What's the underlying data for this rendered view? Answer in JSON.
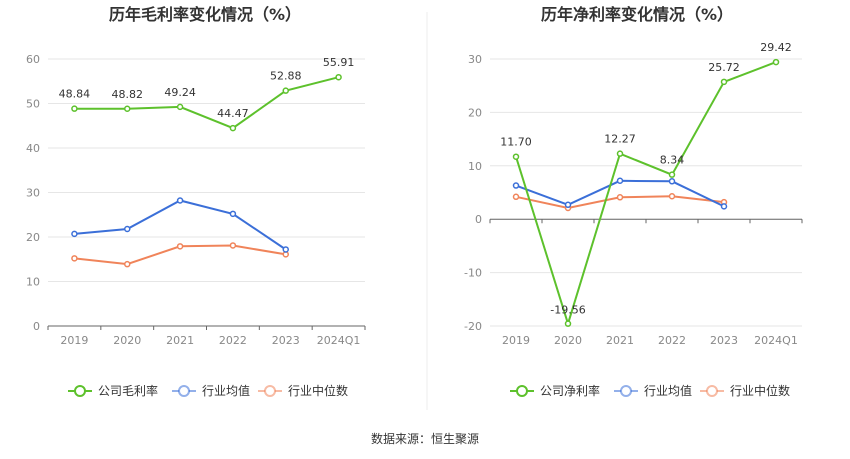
{
  "source_text": "数据来源：恒生聚源",
  "chart_data": [
    {
      "type": "line",
      "title": "历年毛利率变化情况（%）",
      "categories": [
        "2019",
        "2020",
        "2021",
        "2022",
        "2023",
        "2024Q1"
      ],
      "ylim": [
        0,
        60
      ],
      "yticks": [
        0,
        10,
        20,
        30,
        40,
        50,
        60
      ],
      "grid": true,
      "legend_position": "bottom",
      "series": [
        {
          "name": "公司毛利率",
          "color": "#5dc12c",
          "values": [
            48.84,
            48.82,
            49.24,
            44.47,
            52.88,
            55.91
          ],
          "labels": [
            "48.84",
            "48.82",
            "49.24",
            "44.47",
            "52.88",
            "55.91"
          ]
        },
        {
          "name": "行业均值",
          "color": "#3b6fd8",
          "values": [
            20.7,
            21.8,
            28.2,
            25.2,
            17.2,
            null
          ],
          "labels": null
        },
        {
          "name": "行业中位数",
          "color": "#f0845a",
          "values": [
            15.2,
            13.9,
            17.9,
            18.1,
            16.1,
            null
          ],
          "labels": null
        }
      ]
    },
    {
      "type": "line",
      "title": "历年净利率变化情况（%）",
      "categories": [
        "2019",
        "2020",
        "2021",
        "2022",
        "2023",
        "2024Q1"
      ],
      "ylim": [
        -20,
        30
      ],
      "yticks": [
        -20,
        -10,
        0,
        10,
        20,
        30
      ],
      "grid": true,
      "legend_position": "bottom",
      "series": [
        {
          "name": "公司净利率",
          "color": "#5dc12c",
          "values": [
            11.7,
            -19.56,
            12.27,
            8.34,
            25.72,
            29.42
          ],
          "labels": [
            "11.70",
            "-19.56",
            "12.27",
            "8.34",
            "25.72",
            "29.42"
          ]
        },
        {
          "name": "行业均值",
          "color": "#3b6fd8",
          "values": [
            6.3,
            2.7,
            7.2,
            7.1,
            2.4,
            null
          ],
          "labels": null
        },
        {
          "name": "行业中位数",
          "color": "#f0845a",
          "values": [
            4.2,
            2.1,
            4.1,
            4.3,
            3.2,
            null
          ],
          "labels": null
        }
      ]
    }
  ]
}
